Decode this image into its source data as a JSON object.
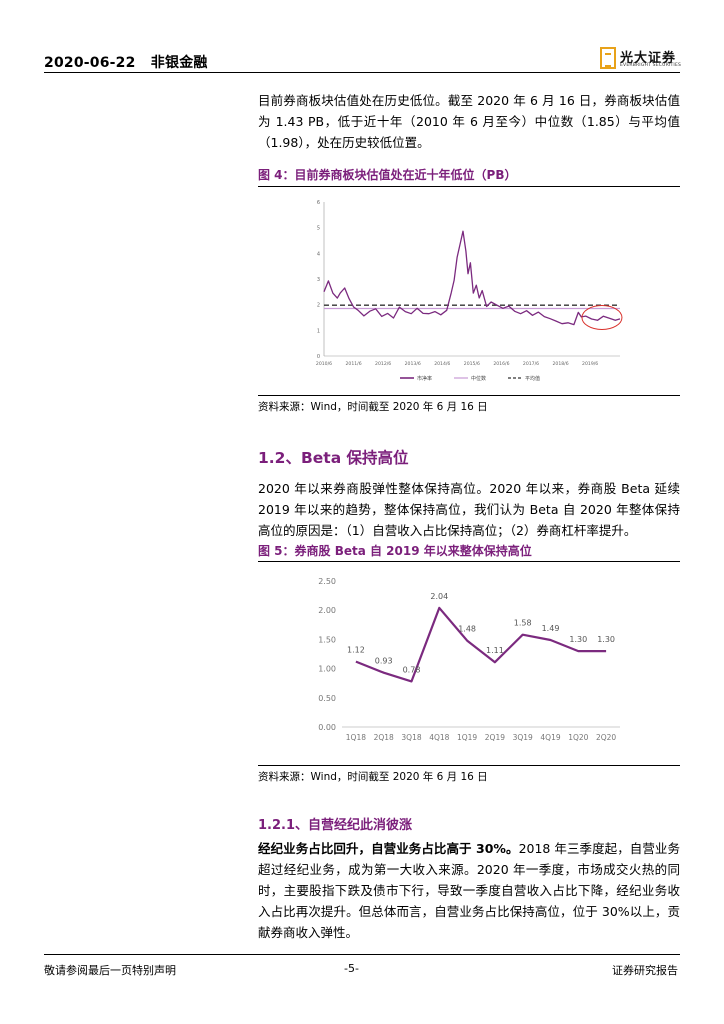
{
  "header": {
    "date": "2020-06-22",
    "category": "非银金融",
    "logo_cn": "光大证券",
    "logo_en": "EVERBRIGHT SECURITIES"
  },
  "paragraph1": "目前券商板块估值处在历史低位。截至 2020 年 6 月 16 日，券商板块估值为 1.43 PB，低于近十年（2010 年 6 月至今）中位数（1.85）与平均值（1.98），处在历史较低位置。",
  "figure4": {
    "title": "图 4：目前券商板块估值处在近十年低位（PB）",
    "source": "资料来源：Wind，时间截至 2020 年 6 月 16 日"
  },
  "section12": {
    "title": "1.2、Beta 保持高位",
    "paragraph": "2020 年以来券商股弹性整体保持高位。2020 年以来，券商股 Beta 延续 2019 年以来的趋势，整体保持高位，我们认为 Beta 自 2020 年整体保持高位的原因是：（1）自营收入占比保持高位；（2）券商杠杆率提升。"
  },
  "figure5": {
    "title": "图 5：券商股 Beta 自 2019 年以来整体保持高位",
    "source": "资料来源：Wind，时间截至 2020 年 6 月 16 日"
  },
  "section121": {
    "title": "1.2.1、自营经纪此消彼涨",
    "lead": "经纪业务占比回升，自营业务占比高于 30%。",
    "paragraph": "2018 年三季度起，自营业务超过经纪业务，成为第一大收入来源。2020 年一季度，市场成交火热的同时，主要股指下跌及债市下行，导致一季度自营收入占比下降，经纪业务收入占比再次提升。但总体而言，自营业务占比保持高位，位于 30%以上，贡献券商收入弹性。"
  },
  "footer": {
    "left": "敬请参阅最后一页特别声明",
    "page": "-5-",
    "right": "证券研究报告"
  },
  "colors": {
    "accent": "#7b1f7b",
    "line": "#7b2a7f",
    "median": "#c89bd6",
    "mean": "#333333",
    "highlight": "#d9302a"
  },
  "chart_data": [
    {
      "type": "line",
      "title": "",
      "x_tick_labels": [
        "2010/6",
        "2011/6",
        "2012/6",
        "2013/6",
        "2014/6",
        "2015/6",
        "2016/6",
        "2017/6",
        "2018/6",
        "2019/6"
      ],
      "ylim": [
        0,
        6
      ],
      "y_ticks": [
        "0",
        "1",
        "2",
        "3",
        "4",
        "5",
        "6"
      ],
      "grid": false,
      "legend_position": "bottom",
      "series": [
        {
          "name": "市净率",
          "t": [
            2010.45,
            2010.6,
            2010.75,
            2010.9,
            2011.0,
            2011.15,
            2011.3,
            2011.45,
            2011.6,
            2011.8,
            2012.0,
            2012.2,
            2012.4,
            2012.6,
            2012.8,
            2013.0,
            2013.2,
            2013.4,
            2013.6,
            2013.8,
            2014.0,
            2014.2,
            2014.4,
            2014.6,
            2014.75,
            2014.85,
            2014.95,
            2015.05,
            2015.15,
            2015.25,
            2015.32,
            2015.4,
            2015.5,
            2015.6,
            2015.7,
            2015.8,
            2015.95,
            2016.1,
            2016.3,
            2016.5,
            2016.7,
            2016.9,
            2017.1,
            2017.3,
            2017.5,
            2017.7,
            2017.9,
            2018.1,
            2018.3,
            2018.5,
            2018.7,
            2018.9,
            2019.05,
            2019.15,
            2019.3,
            2019.5,
            2019.7,
            2019.9,
            2020.1,
            2020.3,
            2020.46
          ],
          "values": [
            2.5,
            2.9,
            2.4,
            2.2,
            2.4,
            2.6,
            2.2,
            1.9,
            1.8,
            1.6,
            1.8,
            1.9,
            1.6,
            1.7,
            1.5,
            1.9,
            1.7,
            1.6,
            1.8,
            1.6,
            1.6,
            1.7,
            1.6,
            1.8,
            2.5,
            3.0,
            3.9,
            4.4,
            4.9,
            4.1,
            3.2,
            3.6,
            2.4,
            2.7,
            2.2,
            2.5,
            1.9,
            2.1,
            2.0,
            1.9,
            2.0,
            1.8,
            1.7,
            1.8,
            1.6,
            1.7,
            1.5,
            1.4,
            1.3,
            1.2,
            1.25,
            1.2,
            1.7,
            1.55,
            1.6,
            1.5,
            1.45,
            1.6,
            1.5,
            1.4,
            1.43
          ]
        },
        {
          "name": "中位数",
          "constant": 1.85
        },
        {
          "name": "平均值",
          "constant": 1.98
        }
      ]
    },
    {
      "type": "line",
      "title": "",
      "categories": [
        "1Q18",
        "2Q18",
        "3Q18",
        "4Q18",
        "1Q19",
        "2Q19",
        "3Q19",
        "4Q19",
        "1Q20",
        "2Q20"
      ],
      "ylim": [
        0,
        2.5
      ],
      "y_ticks": [
        "0.00",
        "0.50",
        "1.00",
        "1.50",
        "2.00",
        "2.50"
      ],
      "grid": false,
      "series": [
        {
          "values": [
            1.12,
            0.93,
            0.78,
            2.04,
            1.48,
            1.11,
            1.58,
            1.49,
            1.3,
            1.3
          ],
          "labels": [
            "1.12",
            "0.93",
            "0.78",
            "2.04",
            "1.48",
            "1.11",
            "1.58",
            "1.49",
            "1.30",
            "1.30"
          ]
        }
      ]
    }
  ]
}
